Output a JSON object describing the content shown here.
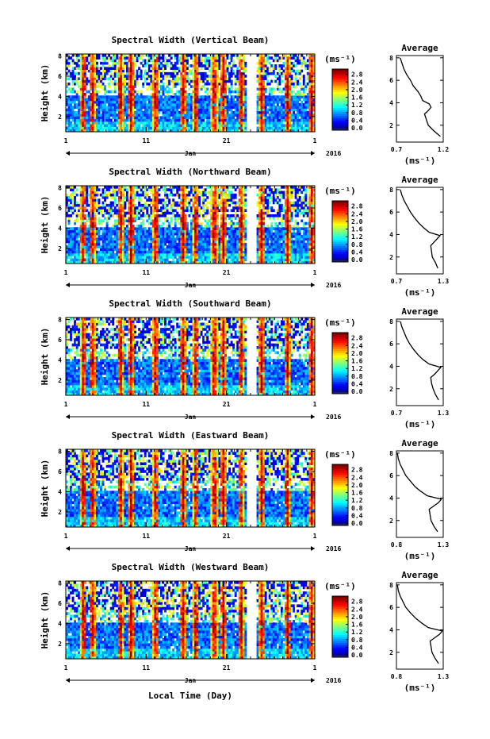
{
  "figure": {
    "xlabel": "Local Time (Day)",
    "month_label": "Jan",
    "year_label": "2016",
    "height_label": "Height (km)",
    "colorbar_unit": "(ms⁻¹)",
    "average_title": "Average",
    "average_unit": "(ms⁻¹)"
  },
  "chart_data": [
    {
      "type": "heatmap",
      "title": "Spectral Width (Vertical Beam)",
      "x_ticks": [
        "1",
        "11",
        "21",
        "1"
      ],
      "y_ticks": [
        "2",
        "4",
        "6",
        "8"
      ],
      "ylim": [
        0.5,
        8.2
      ],
      "colorbar_ticks": [
        "0.0",
        "0.4",
        "0.8",
        "1.2",
        "1.6",
        "2.0",
        "2.4",
        "2.8"
      ],
      "colorbar_range": [
        0.0,
        3.0
      ],
      "profile": {
        "xlim": [
          0.7,
          1.2
        ],
        "xticks": [
          "0.7",
          "1.2"
        ],
        "yticks": [
          "2",
          "4",
          "6",
          "8"
        ],
        "height": [
          1.0,
          1.5,
          2.0,
          2.5,
          3.0,
          3.3,
          3.6,
          3.9,
          4.2,
          4.6,
          5.0,
          5.5,
          6.0,
          6.5,
          7.0,
          7.5,
          8.0
        ],
        "value": [
          1.17,
          1.1,
          1.04,
          1.02,
          1.0,
          1.04,
          1.07,
          1.05,
          0.98,
          0.96,
          0.93,
          0.88,
          0.85,
          0.81,
          0.78,
          0.76,
          0.74
        ]
      }
    },
    {
      "type": "heatmap",
      "title": "Spectral Width (Northward Beam)",
      "x_ticks": [
        "1",
        "11",
        "21",
        "1"
      ],
      "y_ticks": [
        "2",
        "4",
        "6",
        "8"
      ],
      "ylim": [
        0.5,
        8.2
      ],
      "colorbar_ticks": [
        "0.0",
        "0.4",
        "0.8",
        "1.2",
        "1.6",
        "2.0",
        "2.4",
        "2.8"
      ],
      "colorbar_range": [
        0.0,
        3.0
      ],
      "profile": {
        "xlim": [
          0.7,
          1.3
        ],
        "xticks": [
          "0.7",
          "1.3"
        ],
        "yticks": [
          "2",
          "4",
          "6",
          "8"
        ],
        "height": [
          1.0,
          1.5,
          2.0,
          2.5,
          3.0,
          3.3,
          3.6,
          3.9,
          4.2,
          4.6,
          5.0,
          5.5,
          6.0,
          6.5,
          7.0,
          7.5,
          8.0
        ],
        "value": [
          1.23,
          1.2,
          1.16,
          1.15,
          1.14,
          1.18,
          1.22,
          1.26,
          1.12,
          1.05,
          0.99,
          0.93,
          0.88,
          0.84,
          0.8,
          0.77,
          0.75
        ]
      }
    },
    {
      "type": "heatmap",
      "title": "Spectral Width (Southward Beam)",
      "x_ticks": [
        "1",
        "11",
        "21",
        "1"
      ],
      "y_ticks": [
        "2",
        "4",
        "6",
        "8"
      ],
      "ylim": [
        0.5,
        8.2
      ],
      "colorbar_ticks": [
        "0.0",
        "0.4",
        "0.8",
        "1.2",
        "1.6",
        "2.0",
        "2.4",
        "2.8"
      ],
      "colorbar_range": [
        0.0,
        3.0
      ],
      "profile": {
        "xlim": [
          0.7,
          1.3
        ],
        "xticks": [
          "0.7",
          "1.3"
        ],
        "yticks": [
          "2",
          "4",
          "6",
          "8"
        ],
        "height": [
          1.0,
          1.5,
          2.0,
          2.5,
          3.0,
          3.3,
          3.6,
          3.9,
          4.2,
          4.6,
          5.0,
          5.5,
          6.0,
          6.5,
          7.0,
          7.5,
          8.0
        ],
        "value": [
          1.24,
          1.2,
          1.17,
          1.15,
          1.14,
          1.19,
          1.23,
          1.27,
          1.12,
          1.04,
          0.98,
          0.92,
          0.87,
          0.83,
          0.8,
          0.77,
          0.75
        ]
      }
    },
    {
      "type": "heatmap",
      "title": "Spectral Width (Eastward Beam)",
      "x_ticks": [
        "1",
        "11",
        "21",
        "1"
      ],
      "y_ticks": [
        "2",
        "4",
        "6",
        "8"
      ],
      "ylim": [
        0.5,
        8.2
      ],
      "colorbar_ticks": [
        "0.0",
        "0.4",
        "0.8",
        "1.2",
        "1.6",
        "2.0",
        "2.4",
        "2.8"
      ],
      "colorbar_range": [
        0.0,
        3.0
      ],
      "profile": {
        "xlim": [
          0.8,
          1.3
        ],
        "xticks": [
          "0.8",
          "1.3"
        ],
        "yticks": [
          "2",
          "4",
          "6",
          "8"
        ],
        "height": [
          1.0,
          1.5,
          2.0,
          2.5,
          3.0,
          3.3,
          3.6,
          3.9,
          4.2,
          4.6,
          5.0,
          5.5,
          6.0,
          6.5,
          7.0,
          7.5,
          8.0
        ],
        "value": [
          1.24,
          1.2,
          1.17,
          1.16,
          1.15,
          1.2,
          1.25,
          1.28,
          1.13,
          1.06,
          1.0,
          0.95,
          0.9,
          0.87,
          0.84,
          0.82,
          0.81
        ]
      }
    },
    {
      "type": "heatmap",
      "title": "Spectral Width (Westward Beam)",
      "x_ticks": [
        "1",
        "11",
        "21",
        "1"
      ],
      "y_ticks": [
        "2",
        "4",
        "6",
        "8"
      ],
      "ylim": [
        0.5,
        8.2
      ],
      "colorbar_ticks": [
        "0.0",
        "0.4",
        "0.8",
        "1.2",
        "1.6",
        "2.0",
        "2.4",
        "2.8"
      ],
      "colorbar_range": [
        0.0,
        3.0
      ],
      "profile": {
        "xlim": [
          0.8,
          1.3
        ],
        "xticks": [
          "0.8",
          "1.3"
        ],
        "yticks": [
          "2",
          "4",
          "6",
          "8"
        ],
        "height": [
          1.0,
          1.5,
          2.0,
          2.5,
          3.0,
          3.3,
          3.6,
          3.9,
          4.2,
          4.6,
          5.0,
          5.5,
          6.0,
          6.5,
          7.0,
          7.5,
          8.0
        ],
        "value": [
          1.25,
          1.21,
          1.18,
          1.17,
          1.16,
          1.21,
          1.26,
          1.29,
          1.14,
          1.07,
          1.01,
          0.95,
          0.9,
          0.87,
          0.84,
          0.82,
          0.81
        ]
      }
    }
  ]
}
